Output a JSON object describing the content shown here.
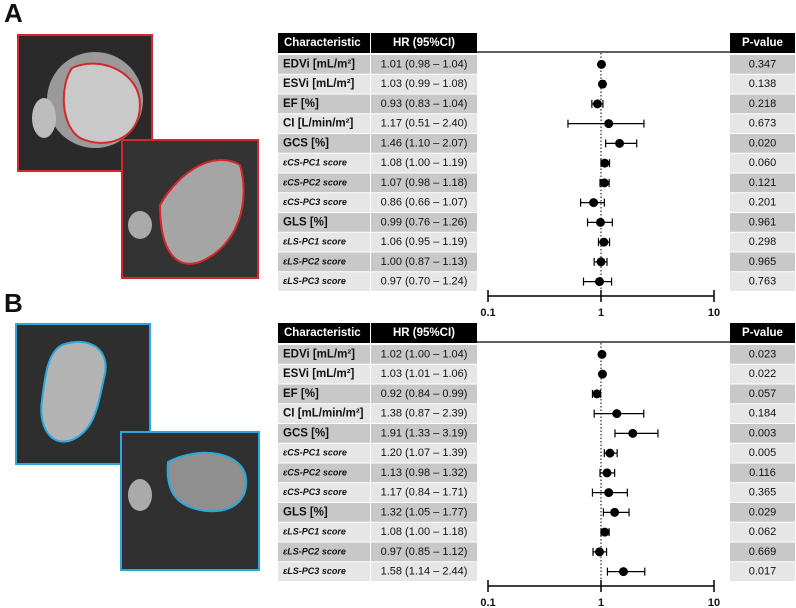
{
  "chart_data": [
    {
      "type": "forest",
      "panel": "A",
      "columns": [
        "Characteristic",
        "HR (95%CI)",
        "P-value"
      ],
      "categories": [
        "EDVi [mL/m²]",
        "ESVi [mL/m²]",
        "EF [%]",
        "CI [L/min/m²]",
        "GCS [%]",
        "εCS-PC1 score",
        "εCS-PC2 score",
        "εCS-PC3 score",
        "GLS [%]",
        "εLS-PC1 score",
        "εLS-PC2 score",
        "εLS-PC3 score"
      ],
      "values": [
        1.01,
        1.03,
        0.93,
        1.17,
        1.46,
        1.08,
        1.07,
        0.86,
        0.99,
        1.06,
        1.0,
        0.97
      ],
      "ci_low": [
        0.98,
        0.99,
        0.83,
        0.51,
        1.1,
        1.0,
        0.98,
        0.66,
        0.76,
        0.95,
        0.87,
        0.7
      ],
      "ci_high": [
        1.04,
        1.08,
        1.04,
        2.4,
        2.07,
        1.19,
        1.18,
        1.07,
        1.26,
        1.19,
        1.13,
        1.24
      ],
      "value_labels": [
        "1.01 (0.98 – 1.04)",
        "1.03 (0.99 – 1.08)",
        "0.93 (0.83 – 1.04)",
        "1.17 (0.51 – 2.40)",
        "1.46 (1.10 – 2.07)",
        "1.08 (1.00 – 1.19)",
        "1.07 (0.98 – 1.18)",
        "0.86 (0.66 – 1.07)",
        "0.99 (0.76 – 1.26)",
        "1.06 (0.95 – 1.19)",
        "1.00 (0.87 – 1.13)",
        "0.97 (0.70 – 1.24)"
      ],
      "p_values": [
        "0.347",
        "0.138",
        "0.218",
        "0.673",
        "0.020",
        "0.060",
        "0.121",
        "0.201",
        "0.961",
        "0.298",
        "0.965",
        "0.763"
      ],
      "xlim": [
        0.1,
        10
      ],
      "xticks": [
        0.1,
        1,
        10
      ],
      "log_scale": true,
      "reference_line": 1,
      "color": "#000000"
    },
    {
      "type": "forest",
      "panel": "B",
      "columns": [
        "Characteristic",
        "HR (95%CI)",
        "P-value"
      ],
      "categories": [
        "EDVi [mL/m²]",
        "ESVi [mL/m²]",
        "EF [%]",
        "CI [mL/min/m²]",
        "GCS [%]",
        "εCS-PC1 score",
        "εCS-PC2 score",
        "εCS-PC3 score",
        "GLS [%]",
        "εLS-PC1 score",
        "εLS-PC2 score",
        "εLS-PC3 score"
      ],
      "values": [
        1.02,
        1.03,
        0.92,
        1.38,
        1.91,
        1.2,
        1.13,
        1.17,
        1.32,
        1.08,
        0.97,
        1.58
      ],
      "ci_low": [
        1.0,
        1.01,
        0.84,
        0.87,
        1.33,
        1.07,
        0.98,
        0.84,
        1.05,
        1.0,
        0.85,
        1.14
      ],
      "ci_high": [
        1.04,
        1.06,
        0.99,
        2.39,
        3.19,
        1.39,
        1.32,
        1.71,
        1.77,
        1.18,
        1.12,
        2.44
      ],
      "value_labels": [
        "1.02 (1.00 – 1.04)",
        "1.03 (1.01 – 1.06)",
        "0.92 (0.84 – 0.99)",
        "1.38 (0.87 – 2.39)",
        "1.91 (1.33 – 3.19)",
        "1.20 (1.07 – 1.39)",
        "1.13 (0.98 – 1.32)",
        "1.17 (0.84 – 1.71)",
        "1.32 (1.05 – 1.77)",
        "1.08 (1.00 – 1.18)",
        "0.97 (0.85 – 1.12)",
        "1.58 (1.14 – 2.44)"
      ],
      "p_values": [
        "0.023",
        "0.022",
        "0.057",
        "0.184",
        "0.003",
        "0.005",
        "0.116",
        "0.365",
        "0.029",
        "0.062",
        "0.669",
        "0.017"
      ],
      "xlim": [
        0.1,
        10
      ],
      "xticks": [
        0.1,
        1,
        10
      ],
      "log_scale": true,
      "reference_line": 1,
      "color": "#000000"
    }
  ]
}
